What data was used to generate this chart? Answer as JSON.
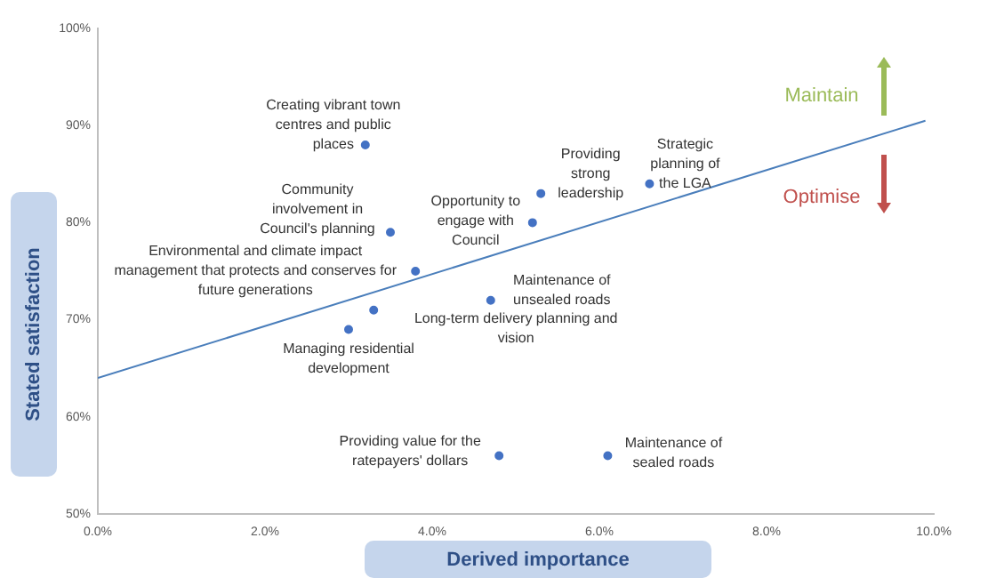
{
  "chart_data": {
    "type": "scatter",
    "xlabel": "Derived importance",
    "ylabel": "Stated satisfaction",
    "xlim": [
      0,
      10
    ],
    "ylim": [
      50,
      100
    ],
    "xticks": [
      {
        "value": 0,
        "label": "0.0%"
      },
      {
        "value": 2,
        "label": "2.0%"
      },
      {
        "value": 4,
        "label": "4.0%"
      },
      {
        "value": 6,
        "label": "6.0%"
      },
      {
        "value": 8,
        "label": "8.0%"
      },
      {
        "value": 10,
        "label": "10.0%"
      }
    ],
    "yticks": [
      {
        "value": 50,
        "label": "50%"
      },
      {
        "value": 60,
        "label": "60%"
      },
      {
        "value": 70,
        "label": "70%"
      },
      {
        "value": 80,
        "label": "80%"
      },
      {
        "value": 90,
        "label": "90%"
      },
      {
        "value": 100,
        "label": "100%"
      }
    ],
    "series": [
      {
        "marker": "circle",
        "color": "#4472c4",
        "x": [
          3.2,
          3.5,
          3.8,
          5.2,
          5.3,
          6.6,
          4.7,
          3.3,
          3.0,
          4.8,
          6.1
        ],
        "values": [
          88,
          79,
          75,
          80,
          83,
          84,
          72,
          71,
          69,
          56,
          56
        ]
      },
      {
        "type": "line",
        "marker": "none",
        "color": "#4a7ebb",
        "x": [
          0,
          9.9
        ],
        "values": [
          64,
          90.5
        ]
      }
    ],
    "annotations": [
      {
        "text": "Creating vibrant town centres and public places",
        "x": 3.2,
        "y": 88
      },
      {
        "text": "Community involvement in Council's planning",
        "x": 3.5,
        "y": 79
      },
      {
        "text": "Environmental and climate impact management that protects and conserves for future generations",
        "x": 3.8,
        "y": 75
      },
      {
        "text": "Opportunity to engage with Council",
        "x": 5.2,
        "y": 80
      },
      {
        "text": "Providing strong leadership",
        "x": 5.3,
        "y": 83
      },
      {
        "text": "Strategic planning of the LGA",
        "x": 6.6,
        "y": 84
      },
      {
        "text": "Maintenance of unsealed roads",
        "x": 4.7,
        "y": 72
      },
      {
        "text": "Long-term delivery planning and vision",
        "x": 3.3,
        "y": 71
      },
      {
        "text": "Managing residential development",
        "x": 3.0,
        "y": 69
      },
      {
        "text": "Providing value for the ratepayers' dollars",
        "x": 4.8,
        "y": 56
      },
      {
        "text": "Maintenance of sealed roads",
        "x": 6.1,
        "y": 56
      },
      "Maintain",
      "Optimise"
    ]
  }
}
